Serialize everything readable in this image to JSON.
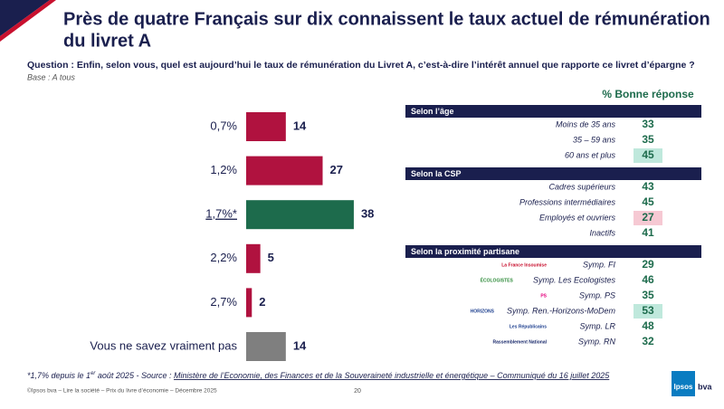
{
  "title": [
    "Près de quatre Français sur dix connaissent le taux actuel de rémunération",
    "du livret A"
  ],
  "question": "Question : Enfin, selon vous, quel est aujourd’hui le taux de rémunération du Livret A, c’est-à-dire l’intérêt annuel que rapporte ce livret d’épargne ?",
  "base": "Base : A tous",
  "chart_data": {
    "type": "bar",
    "orientation": "horizontal",
    "categories": [
      "0,7%",
      "1,2%",
      "1,7%*",
      "2,2%",
      "2,7%",
      "Vous ne savez vraiment pas"
    ],
    "values": [
      14,
      27,
      38,
      5,
      2,
      14
    ],
    "colors": [
      "#b0123f",
      "#b0123f",
      "#1d6b4c",
      "#b0123f",
      "#b0123f",
      "#7f7f7f"
    ]
  },
  "table": {
    "header": "% Bonne réponse",
    "sections": [
      {
        "title": "Selon l’âge",
        "rows": [
          {
            "label": "Moins de 35 ans",
            "value": 33
          },
          {
            "label": "35 – 59 ans",
            "value": 35
          },
          {
            "label": "60 ans et plus",
            "value": 45,
            "highlight": "#bfe8dc"
          }
        ]
      },
      {
        "title": "Selon la CSP",
        "rows": [
          {
            "label": "Cadres supérieurs",
            "value": 43
          },
          {
            "label": "Professions intermédiaires",
            "value": 45
          },
          {
            "label": "Employés et ouvriers",
            "value": 27,
            "highlight": "#f6c9d3"
          },
          {
            "label": "Inactifs",
            "value": 41
          }
        ]
      },
      {
        "title": "Selon la proximité partisane",
        "rows": [
          {
            "label": "Symp. FI",
            "value": 29,
            "logo": "La France Insoumise",
            "logo_color": "#c8102e"
          },
          {
            "label": "Symp. Les Ecologistes",
            "value": 46,
            "logo": "ÉCOLOGISTES",
            "logo_color": "#2e8b3a"
          },
          {
            "label": "Symp. PS",
            "value": 35,
            "logo": "PS",
            "logo_color": "#e4007c"
          },
          {
            "label": "Symp. Ren.-Horizons-MoDem",
            "value": 53,
            "highlight": "#bfe8dc",
            "logo": "HORIZONS",
            "logo_color": "#1d3f8f"
          },
          {
            "label": "Symp. LR",
            "value": 48,
            "logo": "Les Républicains",
            "logo_color": "#1d3f8f"
          },
          {
            "label": "Symp. RN",
            "value": 32,
            "logo": "Rassemblement National",
            "logo_color": "#1a2a6c"
          }
        ]
      }
    ]
  },
  "footnote": {
    "start": "*1,7% depuis le 1",
    "sup": "er",
    "middle": " août 2025 - Source : ",
    "link": "Ministère de l’Economie, des Finances et de la Souveraineté industrielle et énergétique – Communiqué du 16 juillet 2025"
  },
  "footer": "©Ipsos bva – Lire la société – Prix du livre d’économie – Décembre 2025",
  "page": "20",
  "logo": {
    "name": "Ipsos",
    "suffix": "bva"
  }
}
